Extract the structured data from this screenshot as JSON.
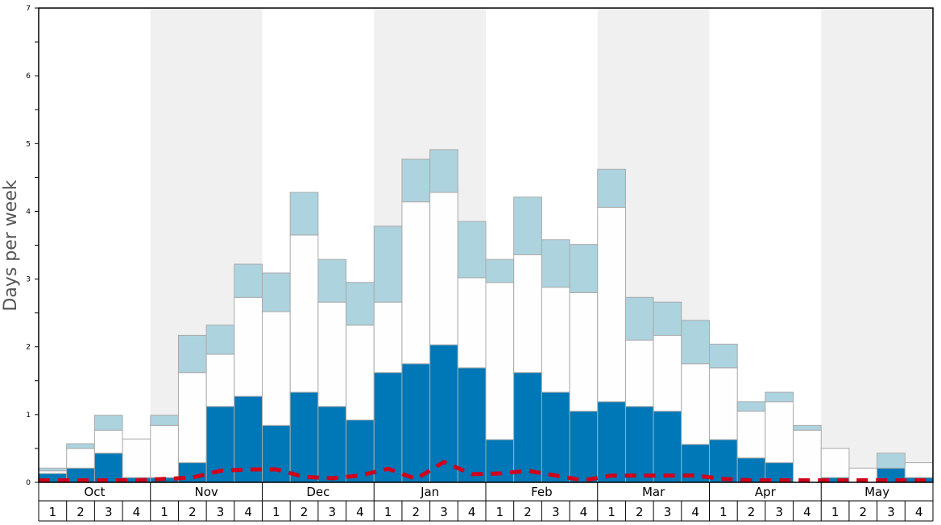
{
  "chart_data": {
    "type": "bar",
    "stacked": true,
    "title": "",
    "xlabel": "",
    "ylabel": "Days per week",
    "ylim": [
      0,
      7
    ],
    "yticks": [
      "0",
      "1",
      "2",
      "3",
      "4",
      "5",
      "6",
      "7"
    ],
    "months": [
      "Oct",
      "Nov",
      "Dec",
      "Jan",
      "Feb",
      "Mar",
      "Apr",
      "May"
    ],
    "weeks": [
      "1",
      "2",
      "3",
      "4"
    ],
    "colors": {
      "blue": "#0077b6",
      "white": "#fefefe",
      "lightblue": "#add3df",
      "shade": "#f0f0f0",
      "line": "#d0021b"
    },
    "series": [
      {
        "name": "dark blue",
        "values": [
          0.13,
          0.21,
          0.43,
          0.07,
          0.07,
          0.29,
          1.12,
          1.27,
          0.84,
          1.33,
          1.12,
          0.92,
          1.62,
          1.75,
          2.03,
          1.69,
          0.63,
          1.62,
          1.33,
          1.05,
          1.19,
          1.12,
          1.05,
          0.56,
          0.63,
          0.36,
          0.29,
          0,
          0.07,
          0,
          0.21,
          0.07
        ]
      },
      {
        "name": "white",
        "values": [
          0.04,
          0.29,
          0.34,
          0.57,
          0.77,
          1.33,
          0.77,
          1.46,
          1.68,
          2.32,
          1.54,
          1.4,
          1.04,
          2.39,
          2.25,
          1.33,
          2.32,
          1.74,
          1.55,
          1.75,
          2.87,
          0.98,
          1.12,
          1.19,
          1.06,
          0.69,
          0.9,
          0.77,
          0.43,
          0.21,
          0,
          0.22
        ]
      },
      {
        "name": "light blue",
        "values": [
          0.04,
          0.07,
          0.22,
          0,
          0.15,
          0.55,
          0.43,
          0.49,
          0.57,
          0.63,
          0.63,
          0.63,
          1.12,
          0.63,
          0.63,
          0.83,
          0.34,
          0.85,
          0.7,
          0.71,
          0.56,
          0.63,
          0.49,
          0.64,
          0.35,
          0.14,
          0.14,
          0.07,
          0,
          0,
          0.22,
          0
        ]
      },
      {
        "name": "average",
        "type": "line",
        "style": "dashed",
        "values": [
          0.03,
          0.03,
          0.03,
          0.03,
          0.05,
          0.07,
          0.17,
          0.19,
          0.19,
          0.08,
          0.06,
          0.1,
          0.2,
          0.05,
          0.3,
          0.12,
          0.13,
          0.17,
          0.1,
          0.03,
          0.1,
          0.1,
          0.1,
          0.1,
          0.05,
          0.03,
          0.03,
          0.03,
          0.03,
          0.03,
          0.03,
          0.03
        ]
      }
    ]
  }
}
